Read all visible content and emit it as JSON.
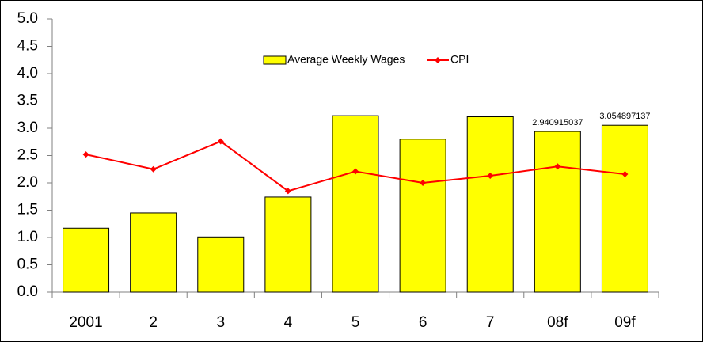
{
  "chart_data": {
    "type": "bar",
    "categories": [
      "2001",
      "2",
      "3",
      "4",
      "5",
      "6",
      "7",
      "08f",
      "09f"
    ],
    "series": [
      {
        "name": "Average Weekly Wages",
        "type": "bar",
        "color": "#ffff00",
        "values": [
          1.17,
          1.45,
          1.01,
          1.74,
          3.23,
          2.8,
          3.21,
          2.940915037,
          3.054897137
        ],
        "value_labels": [
          null,
          null,
          null,
          null,
          null,
          null,
          null,
          "2.940915037",
          "3.054897137"
        ]
      },
      {
        "name": "CPI",
        "type": "line",
        "color": "#ff0000",
        "values": [
          2.52,
          2.25,
          2.76,
          1.85,
          2.21,
          2.0,
          2.13,
          2.3,
          2.16
        ]
      }
    ],
    "ylim": [
      0,
      5
    ],
    "yticks": [
      {
        "value": 0,
        "label": "0.0"
      },
      {
        "value": 0.5,
        "label": "0.5"
      },
      {
        "value": 1,
        "label": "1.0"
      },
      {
        "value": 1.5,
        "label": "1.5"
      },
      {
        "value": 2,
        "label": "2.0"
      },
      {
        "value": 2.5,
        "label": "2.5"
      },
      {
        "value": 3,
        "label": "3.0"
      },
      {
        "value": 3.5,
        "label": "3.5"
      },
      {
        "value": 4,
        "label": "4.0"
      },
      {
        "value": 4.5,
        "label": "4.5"
      },
      {
        "value": 5,
        "label": "5.0"
      }
    ],
    "grid": false,
    "legend": "top"
  }
}
